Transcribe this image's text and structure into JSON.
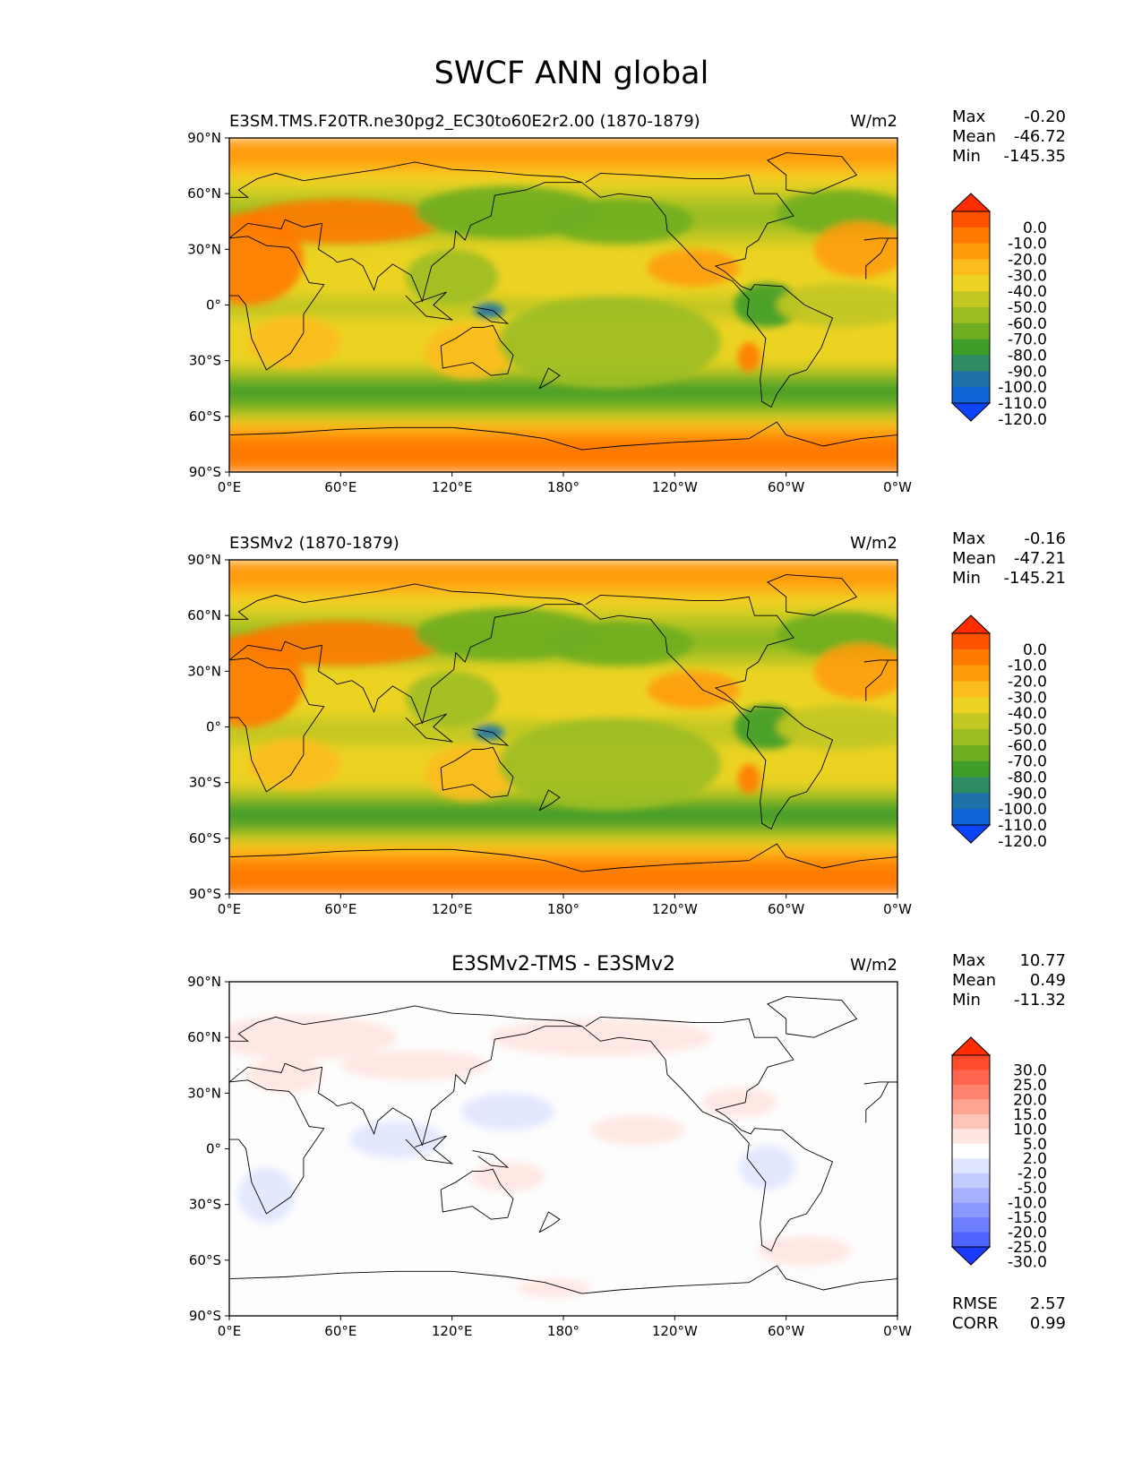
{
  "figure": {
    "title": "SWCF ANN global"
  },
  "chart_data": [
    {
      "type": "heatmap",
      "title": "E3SM.TMS.F20TR.ne30pg2_EC30to60E2r2.00 (1870-1879)",
      "units": "W/m2",
      "stats": [
        {
          "label": "Max",
          "value": "-0.20"
        },
        {
          "label": "Mean",
          "value": "-46.72"
        },
        {
          "label": "Min",
          "value": "-145.35"
        }
      ],
      "colorbar": {
        "levels": [
          "0.0",
          "-10.0",
          "-20.0",
          "-30.0",
          "-40.0",
          "-50.0",
          "-60.0",
          "-70.0",
          "-80.0",
          "-90.0",
          "-100.0",
          "-110.0",
          "-120.0"
        ],
        "colors": [
          "#ff2d00",
          "#ff5200",
          "#ff7a00",
          "#ff9c0a",
          "#fbbd1e",
          "#ecd324",
          "#c4c823",
          "#9cbe22",
          "#6fae20",
          "#3f9d2a",
          "#2e8b62",
          "#1f72a8",
          "#1164d6",
          "#0b44f8"
        ],
        "extend": "both"
      },
      "xticks": [
        "0°E",
        "60°E",
        "120°E",
        "180°",
        "120°W",
        "60°W",
        "0°W"
      ],
      "yticks": [
        "90°N",
        "60°N",
        "30°N",
        "0°",
        "30°S",
        "60°S",
        "90°S"
      ],
      "ylim": [
        -90,
        90
      ],
      "xlim": [
        0,
        360
      ],
      "zonal_profile": [
        {
          "lat": 90,
          "value": -25
        },
        {
          "lat": 75,
          "value": -30
        },
        {
          "lat": 60,
          "value": -55
        },
        {
          "lat": 45,
          "value": -70
        },
        {
          "lat": 30,
          "value": -45
        },
        {
          "lat": 15,
          "value": -40
        },
        {
          "lat": 0,
          "value": -55
        },
        {
          "lat": -15,
          "value": -45
        },
        {
          "lat": -30,
          "value": -45
        },
        {
          "lat": -45,
          "value": -85
        },
        {
          "lat": -55,
          "value": -75
        },
        {
          "lat": -65,
          "value": -35
        },
        {
          "lat": -75,
          "value": -15
        },
        {
          "lat": -90,
          "value": -15
        }
      ]
    },
    {
      "type": "heatmap",
      "title": "E3SMv2 (1870-1879)",
      "units": "W/m2",
      "stats": [
        {
          "label": "Max",
          "value": "-0.16"
        },
        {
          "label": "Mean",
          "value": "-47.21"
        },
        {
          "label": "Min",
          "value": "-145.21"
        }
      ],
      "colorbar": {
        "levels": [
          "0.0",
          "-10.0",
          "-20.0",
          "-30.0",
          "-40.0",
          "-50.0",
          "-60.0",
          "-70.0",
          "-80.0",
          "-90.0",
          "-100.0",
          "-110.0",
          "-120.0"
        ],
        "colors": [
          "#ff2d00",
          "#ff5200",
          "#ff7a00",
          "#ff9c0a",
          "#fbbd1e",
          "#ecd324",
          "#c4c823",
          "#9cbe22",
          "#6fae20",
          "#3f9d2a",
          "#2e8b62",
          "#1f72a8",
          "#1164d6",
          "#0b44f8"
        ],
        "extend": "both"
      },
      "xticks": [
        "0°E",
        "60°E",
        "120°E",
        "180°",
        "120°W",
        "60°W",
        "0°W"
      ],
      "yticks": [
        "90°N",
        "60°N",
        "30°N",
        "0°",
        "30°S",
        "60°S",
        "90°S"
      ],
      "ylim": [
        -90,
        90
      ],
      "xlim": [
        0,
        360
      ],
      "zonal_profile": [
        {
          "lat": 90,
          "value": -25
        },
        {
          "lat": 75,
          "value": -30
        },
        {
          "lat": 60,
          "value": -56
        },
        {
          "lat": 45,
          "value": -72
        },
        {
          "lat": 30,
          "value": -46
        },
        {
          "lat": 15,
          "value": -41
        },
        {
          "lat": 0,
          "value": -56
        },
        {
          "lat": -15,
          "value": -46
        },
        {
          "lat": -30,
          "value": -46
        },
        {
          "lat": -45,
          "value": -86
        },
        {
          "lat": -55,
          "value": -76
        },
        {
          "lat": -65,
          "value": -36
        },
        {
          "lat": -75,
          "value": -15
        },
        {
          "lat": -90,
          "value": -15
        }
      ]
    },
    {
      "type": "heatmap",
      "title": "E3SMv2-TMS - E3SMv2",
      "units": "W/m2",
      "stats": [
        {
          "label": "Max",
          "value": "10.77"
        },
        {
          "label": "Mean",
          "value": "0.49"
        },
        {
          "label": "Min",
          "value": "-11.32"
        }
      ],
      "colorbar": {
        "levels": [
          "30.0",
          "25.0",
          "20.0",
          "15.0",
          "10.0",
          "5.0",
          "2.0",
          "-2.0",
          "-5.0",
          "-10.0",
          "-15.0",
          "-20.0",
          "-25.0",
          "-30.0"
        ],
        "colors": [
          "#ff2d00",
          "#ff4a2c",
          "#ff6650",
          "#ff8470",
          "#ffa393",
          "#ffc4b8",
          "#ffe6e0",
          "#ffffff",
          "#e0e6ff",
          "#c4ccff",
          "#a7b2ff",
          "#8a98ff",
          "#6d7eff",
          "#4f64ff",
          "#1a3aff"
        ],
        "extend": "both"
      },
      "xticks": [
        "0°E",
        "60°E",
        "120°E",
        "180°",
        "120°W",
        "60°W",
        "0°W"
      ],
      "yticks": [
        "90°N",
        "60°N",
        "30°N",
        "0°",
        "30°S",
        "60°S",
        "90°S"
      ],
      "ylim": [
        -90,
        90
      ],
      "xlim": [
        0,
        360
      ],
      "rmse": {
        "label": "RMSE",
        "value": "2.57"
      },
      "corr": {
        "label": "CORR",
        "value": "0.99"
      }
    }
  ]
}
